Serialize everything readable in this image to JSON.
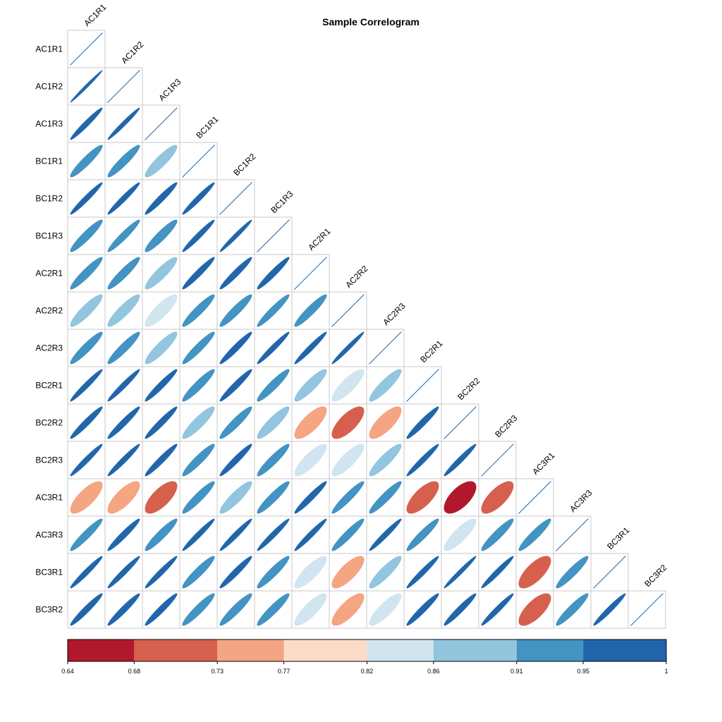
{
  "chart_data": {
    "type": "heatmap",
    "style": "correlogram-ellipse-lower",
    "title": "Sample Correlogram",
    "variables": [
      "AC1R1",
      "AC1R2",
      "AC1R3",
      "BC1R1",
      "BC1R2",
      "BC1R3",
      "AC2R1",
      "AC2R2",
      "AC2R3",
      "BC2R1",
      "BC2R2",
      "BC2R3",
      "AC3R1",
      "AC3R3",
      "BC3R1",
      "BC3R2"
    ],
    "lower_triangle": [
      [
        1.0
      ],
      [
        0.99,
        1.0
      ],
      [
        0.97,
        0.98,
        1.0
      ],
      [
        0.93,
        0.93,
        0.89,
        1.0
      ],
      [
        0.97,
        0.97,
        0.96,
        0.97,
        1.0
      ],
      [
        0.93,
        0.95,
        0.92,
        0.97,
        0.98,
        1.0
      ],
      [
        0.93,
        0.93,
        0.89,
        0.96,
        0.96,
        0.96,
        1.0
      ],
      [
        0.89,
        0.89,
        0.84,
        0.93,
        0.93,
        0.95,
        0.93,
        1.0
      ],
      [
        0.93,
        0.93,
        0.89,
        0.94,
        0.96,
        0.97,
        0.97,
        0.98,
        1.0
      ],
      [
        0.97,
        0.97,
        0.96,
        0.93,
        0.96,
        0.93,
        0.89,
        0.83,
        0.89,
        1.0
      ],
      [
        0.96,
        0.96,
        0.96,
        0.89,
        0.93,
        0.89,
        0.76,
        0.72,
        0.76,
        0.96,
        1.0
      ],
      [
        0.97,
        0.97,
        0.96,
        0.93,
        0.96,
        0.93,
        0.83,
        0.83,
        0.89,
        0.97,
        0.97,
        1.0
      ],
      [
        0.76,
        0.76,
        0.71,
        0.93,
        0.89,
        0.93,
        0.96,
        0.94,
        0.93,
        0.72,
        0.64,
        0.72,
        1.0
      ],
      [
        0.94,
        0.96,
        0.93,
        0.97,
        0.97,
        0.97,
        0.97,
        0.94,
        0.97,
        0.94,
        0.84,
        0.93,
        0.93,
        1.0
      ],
      [
        0.97,
        0.97,
        0.97,
        0.93,
        0.96,
        0.93,
        0.83,
        0.77,
        0.89,
        0.97,
        0.98,
        0.97,
        0.71,
        0.93,
        1.0
      ],
      [
        0.96,
        0.96,
        0.96,
        0.93,
        0.93,
        0.93,
        0.83,
        0.77,
        0.84,
        0.96,
        0.96,
        0.97,
        0.71,
        0.93,
        0.97,
        1.0
      ]
    ],
    "color_breaks": [
      0.64,
      0.68,
      0.73,
      0.77,
      0.82,
      0.86,
      0.91,
      0.95,
      1
    ],
    "colorbar_ticks": [
      "0.64",
      "0.68",
      "0.73",
      "0.77",
      "0.82",
      "0.86",
      "0.91",
      "0.95",
      "1"
    ],
    "colors": [
      "#b2182b",
      "#d6604d",
      "#f4a582",
      "#fddbc7",
      "#d1e5f0",
      "#92c5de",
      "#4393c3",
      "#2166ac"
    ],
    "legend_position": "bottom",
    "grid": true
  }
}
